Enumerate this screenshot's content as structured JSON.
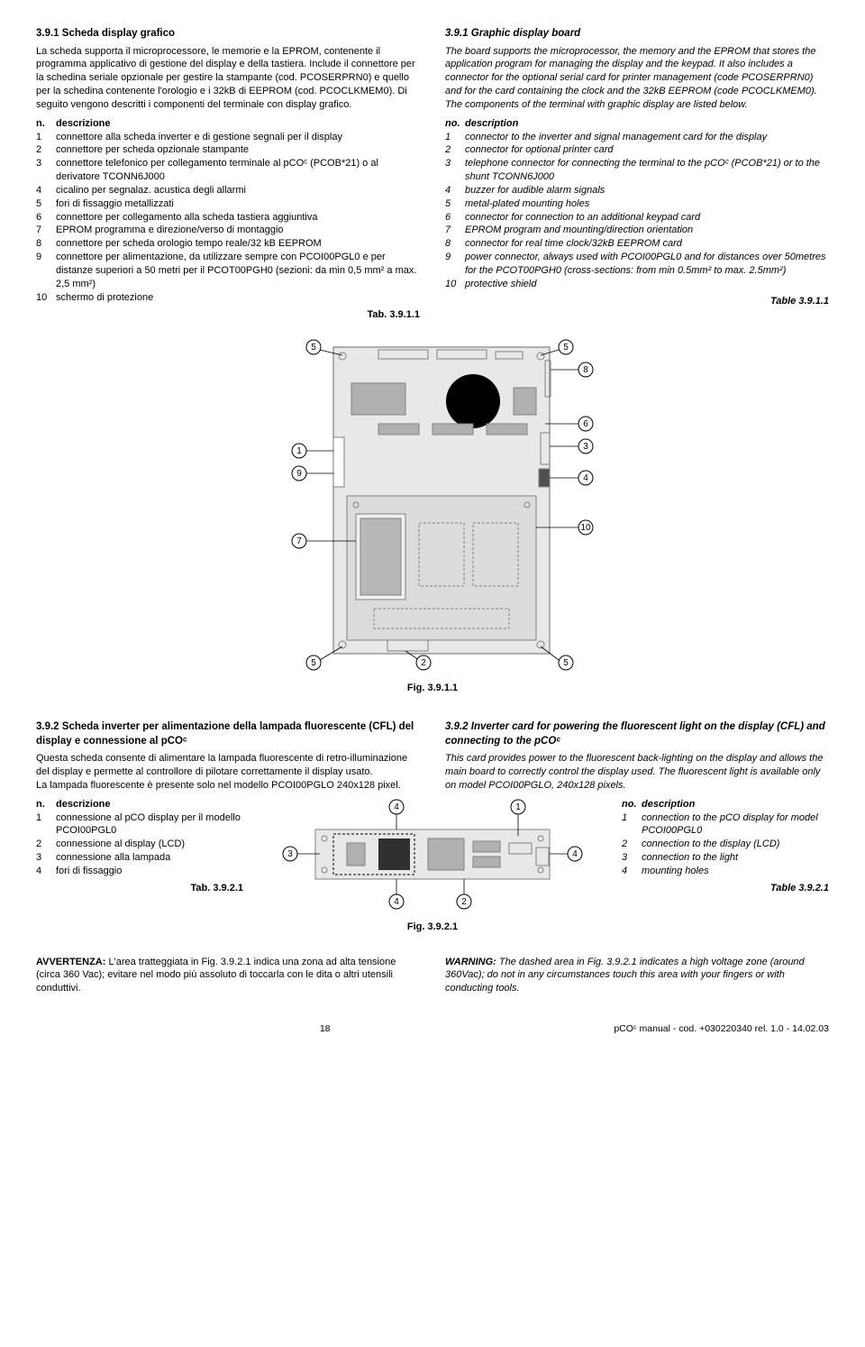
{
  "left": {
    "title": "3.9.1 Scheda display grafico",
    "para": "La scheda supporta il microprocessore, le memorie e la EPROM, contenente il programma applicativo di gestione del display e della tastiera. Include il connettore per la schedina seriale opzionale per gestire la stampante (cod. PCOSERPRN0) e quello per la schedina contenente l'orologio e i 32kB di EEPROM (cod. PCOCLKMEM0). Di seguito vengono descritti i componenti del terminale con display grafico.",
    "head_n": "n.",
    "head_d": "descrizione",
    "items": [
      {
        "n": "1",
        "d": "connettore alla scheda inverter e di gestione segnali per il display"
      },
      {
        "n": "2",
        "d": "connettore per scheda opzionale stampante"
      },
      {
        "n": "3",
        "d": "connettore telefonico per collegamento terminale al pCOᶜ (PCOB*21) o al derivatore TCONN6J000"
      },
      {
        "n": "4",
        "d": "cicalino per segnalaz. acustica degli allarmi"
      },
      {
        "n": "5",
        "d": "fori di fissaggio metallizzati"
      },
      {
        "n": "6",
        "d": "connettore per collegamento alla scheda tastiera aggiuntiva"
      },
      {
        "n": "7",
        "d": "EPROM programma e direzione/verso di montaggio"
      },
      {
        "n": "8",
        "d": "connettore per scheda orologio tempo reale/32 kB EEPROM"
      },
      {
        "n": "9",
        "d": "connettore per alimentazione, da utilizzare sempre con PCOI00PGL0 e per distanze superiori a 50 metri per  il PCOT00PGH0 (sezioni: da min 0,5 mm² a max. 2,5 mm²)"
      },
      {
        "n": "10",
        "d": "schermo di protezione"
      }
    ],
    "tab": "Tab. 3.9.1.1"
  },
  "right": {
    "title": "3.9.1 Graphic display board",
    "para": "The board supports the microprocessor, the memory and the EPROM that stores the application program for managing the display and the keypad. It also includes a connector for the optional serial card for printer management (code PCOSERPRN0) and for the card containing the clock and the 32kB EEPROM (code PCOCLKMEM0). The components of the terminal with graphic display are listed below.",
    "head_n": "no.",
    "head_d": "description",
    "items": [
      {
        "n": "1",
        "d": "connector to the inverter and signal management card for the display"
      },
      {
        "n": "2",
        "d": "connector for optional printer card"
      },
      {
        "n": "3",
        "d": "telephone connector for connecting the terminal to the pCOᶜ (PCOB*21) or to the shunt TCONN6J000"
      },
      {
        "n": "4",
        "d": "buzzer for audible alarm signals"
      },
      {
        "n": "5",
        "d": "metal-plated mounting holes"
      },
      {
        "n": "6",
        "d": "connector for connection to an additional keypad card"
      },
      {
        "n": "7",
        "d": "EPROM program and mounting/direction orientation"
      },
      {
        "n": "8",
        "d": "connector for real time clock/32kB EEPROM card"
      },
      {
        "n": "9",
        "d": "power connector, always used with PCOI00PGL0 and for distances over 50metres for the PCOT00PGH0 (cross-sections: from min 0.5mm² to max. 2.5mm²)"
      },
      {
        "n": "10",
        "d": "protective shield"
      }
    ],
    "tab": "Table 3.9.1.1"
  },
  "fig1": "Fig. 3.9.1.1",
  "s392_left": {
    "title": "3.9.2 Scheda inverter per alimentazione della lampada fluorescente (CFL) del display e connessione al pCOᶜ",
    "para": "Questa scheda consente di alimentare la lampada fluorescente di retro-illuminazione del display e permette al controllore di pilotare correttamente il display usato.\nLa lampada fluorescente è presente solo nel modello PCOI00PGLO 240x128 pixel.",
    "head_n": "n.",
    "head_d": "descrizione",
    "items": [
      {
        "n": "1",
        "d": "connessione al pCO display per il modello PCOI00PGL0"
      },
      {
        "n": "2",
        "d": "connessione al display (LCD)"
      },
      {
        "n": "3",
        "d": "connessione alla lampada"
      },
      {
        "n": "4",
        "d": "fori di fissaggio"
      }
    ],
    "tab": "Tab. 3.9.2.1"
  },
  "s392_right": {
    "title": "3.9.2 Inverter card for powering the fluorescent light on the display (CFL) and connecting to the pCOᶜ",
    "para": "This card provides power to the fluorescent back-lighting on the display and allows the main board to correctly control the display used. The fluorescent light is available only on model PCOI00PGLO, 240x128 pixels.",
    "head_n": "no.",
    "head_d": "description",
    "items": [
      {
        "n": "1",
        "d": "connection to the pCO display for model PCOI00PGL0"
      },
      {
        "n": "2",
        "d": "connection to the display (LCD)"
      },
      {
        "n": "3",
        "d": "connection to the light"
      },
      {
        "n": "4",
        "d": "mounting holes"
      }
    ],
    "tab": "Table 3.9.2.1"
  },
  "fig2": "Fig. 3.9.2.1",
  "warn_left_b": "AVVERTENZA:",
  "warn_left": " L'area tratteggiata in Fig. 3.9.2.1 indica una zona ad alta tensione (circa 360 Vac); evitare nel modo più assoluto di toccarla con le dita o altri utensili conduttivi.",
  "warn_right_b": "WARNING:",
  "warn_right": " The dashed area in Fig. 3.9.2.1 indicates a high voltage zone (around 360Vac); do not in any circumstances touch this area with your fingers or with conducting tools.",
  "footer_page": "18",
  "footer_right": "pCOᶜ manual - cod. +030220340  rel. 1.0 - 14.02.03",
  "callouts1": [
    "1",
    "2",
    "3",
    "4",
    "5",
    "6",
    "7",
    "8",
    "9",
    "10"
  ],
  "callouts2": [
    "1",
    "2",
    "3",
    "4"
  ],
  "board_colors": {
    "outline": "#808080",
    "fill_light": "#e8e8e8",
    "fill_dark": "#b0b0b0",
    "black": "#000"
  }
}
